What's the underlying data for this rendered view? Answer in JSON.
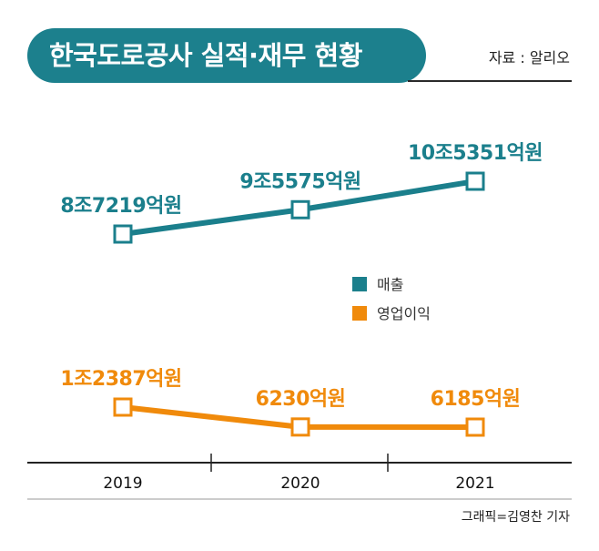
{
  "header": {
    "title": "한국도로공사 실적·재무 현황",
    "source": "자료 : 알리오"
  },
  "credit": "그래픽=김영찬 기자",
  "colors": {
    "header_bg": "#1c808d",
    "revenue": "#1b7f8c",
    "operating_profit": "#f08a0b"
  },
  "chart_data": {
    "type": "line",
    "title": "한국도로공사 실적·재무 현황",
    "categories": [
      "2019",
      "2020",
      "2021"
    ],
    "series": [
      {
        "name": "매출",
        "unit": "억원",
        "values": [
          87219,
          95575,
          105351
        ],
        "labels": [
          "8조7219억원",
          "9조5575억원",
          "10조5351억원"
        ]
      },
      {
        "name": "영업이익",
        "unit": "억원",
        "values": [
          12387,
          6230,
          6185
        ],
        "labels": [
          "1조2387억원",
          "6230억원",
          "6185억원"
        ]
      }
    ],
    "legend": [
      "매출",
      "영업이익"
    ],
    "legend_position": "middle-right",
    "xlabel": "",
    "ylabel": "",
    "grid": false
  }
}
